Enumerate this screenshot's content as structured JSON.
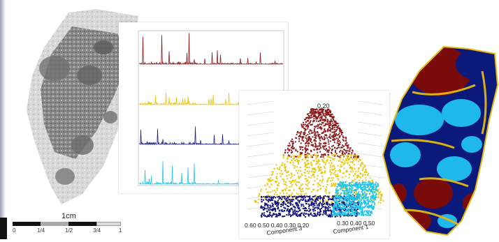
{
  "scale_bar": {
    "title": "1cm",
    "ticks": [
      "0",
      "1/4",
      "1/2",
      "3/4",
      "1"
    ]
  },
  "spectra_panel": {
    "series_colors": [
      "#8b1a1a",
      "#e8c70a",
      "#1f1f80",
      "#26c6e6"
    ]
  },
  "scatter_panel": {
    "tick_labels_left": "0.60 0.50 0.40 0.30 0.20",
    "tick_labels_right": "0.30 0.40 0.50",
    "tick_top": "0.20",
    "axis_left": "Component 3",
    "axis_right": "Component 1",
    "cluster_colors": [
      "#8b1a1a",
      "#e8c70a",
      "#10107a",
      "#1ec6ec"
    ]
  },
  "colors": {
    "map_dark_red": "#7a0b0b",
    "map_navy": "#0b1a7a",
    "map_cyan": "#1fb8ea",
    "map_yellow": "#e6b80e"
  }
}
